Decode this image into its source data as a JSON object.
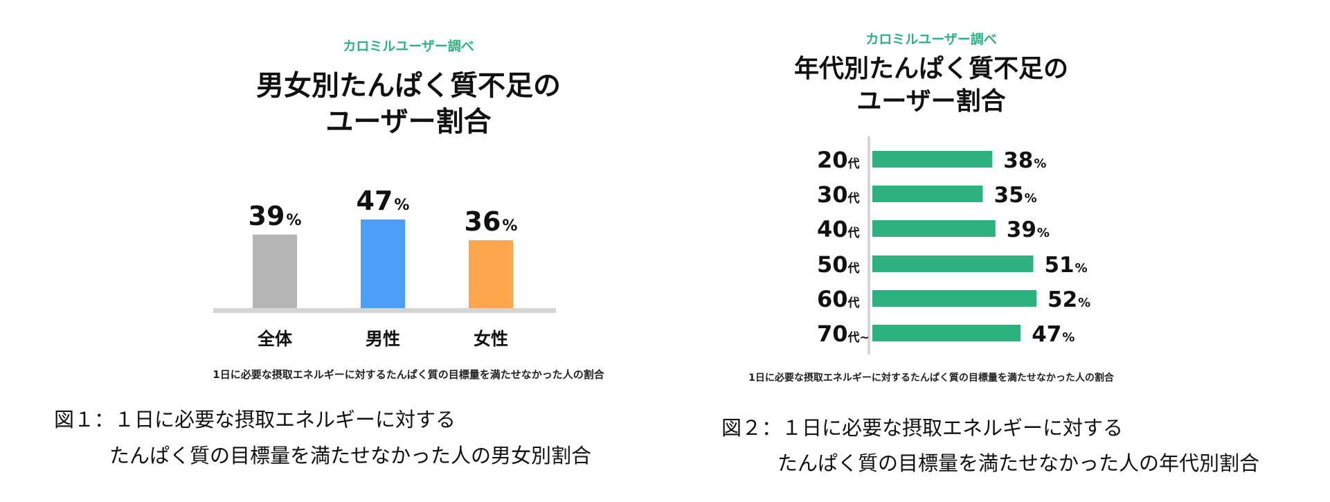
{
  "chart_data": [
    {
      "type": "bar",
      "source": "カロミルユーザー調べ",
      "title_lines": [
        "男女別たんぱく質不足の",
        "ユーザー割合"
      ],
      "categories": [
        "全体",
        "男性",
        "女性"
      ],
      "values": [
        39,
        47,
        36
      ],
      "value_unit": "%",
      "colors": [
        "#b5b5b5",
        "#4d9ef9",
        "#fea64e"
      ],
      "ylim": [
        0,
        60
      ],
      "footnote": "1日に必要な摂取エネルギーに対するたんぱく質の目標量を満たせなかった人の割合"
    },
    {
      "type": "bar",
      "orientation": "horizontal",
      "source": "カロミルユーザー調べ",
      "title_lines": [
        "年代別たんぱく質不足の",
        "ユーザー割合"
      ],
      "categories": [
        {
          "num": "20",
          "suffix": "代"
        },
        {
          "num": "30",
          "suffix": "代"
        },
        {
          "num": "40",
          "suffix": "代"
        },
        {
          "num": "50",
          "suffix": "代"
        },
        {
          "num": "60",
          "suffix": "代"
        },
        {
          "num": "70",
          "suffix": "代~"
        }
      ],
      "values": [
        38,
        35,
        39,
        51,
        52,
        47
      ],
      "value_unit": "%",
      "color": "#2db27f",
      "xlim": [
        0,
        60
      ],
      "footnote": "1日に必要な摂取エネルギーに対するたんぱく質の目標量を満たせなかった人の割合"
    }
  ],
  "captions": [
    {
      "line1": "図１：１日に必要な摂取エネルギーに対する",
      "line2": "たんぱく質の目標量を満たせなかった人の男女別割合"
    },
    {
      "line1": "図２：１日に必要な摂取エネルギーに対する",
      "line2": "たんぱく質の目標量を満たせなかった人の年代別割合"
    }
  ]
}
